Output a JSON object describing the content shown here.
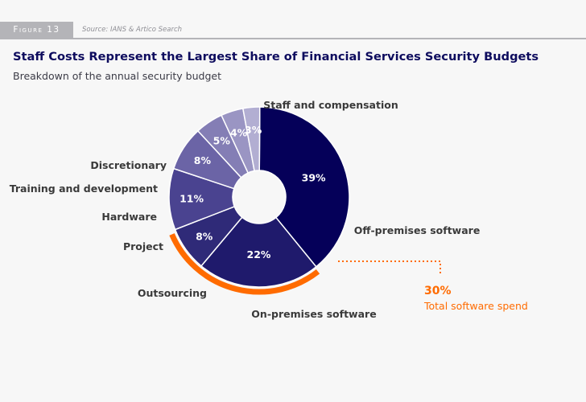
{
  "header": {
    "figure_label": "Figure 13",
    "source": "Source: IANS & Artico Search"
  },
  "title": "Staff Costs Represent the Largest Share of Financial Services Security Budgets",
  "subtitle": "Breakdown of the annual security budget",
  "chart_data": {
    "type": "pie",
    "donut": true,
    "slices": [
      {
        "label": "Staff and compensation",
        "value": 39,
        "display": "39%",
        "color": "#050059"
      },
      {
        "label": "Off-premises software",
        "value": 22,
        "display": "22%",
        "color": "#1f1a6c"
      },
      {
        "label": "On-premises software",
        "value": 8,
        "display": "8%",
        "color": "#2f2a78"
      },
      {
        "label": "Outsourcing",
        "value": 11,
        "display": "11%",
        "color": "#4a4390"
      },
      {
        "label": "Project",
        "value": 8,
        "display": "8%",
        "color": "#6b64a6"
      },
      {
        "label": "Hardware",
        "value": 5,
        "display": "5%",
        "color": "#847eb5"
      },
      {
        "label": "Training and development",
        "value": 4,
        "display": "4%",
        "color": "#9a95c3"
      },
      {
        "label": "Discretionary",
        "value": 3,
        "display": "3%",
        "color": "#b2aed2"
      }
    ],
    "highlight": {
      "value": "30%",
      "label": "Total software spend",
      "color": "#ff6b00",
      "covers": [
        "Off-premises software",
        "On-premises software"
      ]
    }
  }
}
